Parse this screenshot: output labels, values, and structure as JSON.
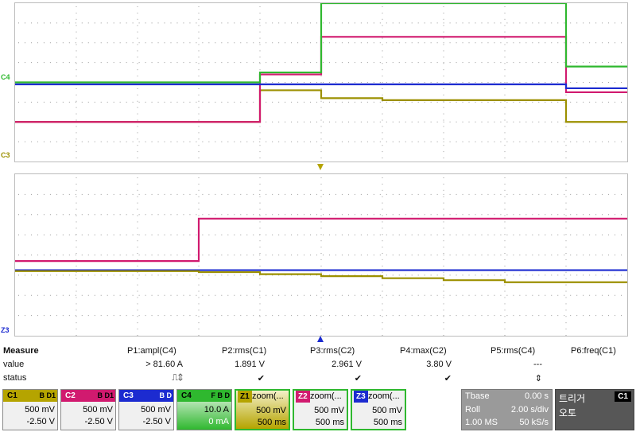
{
  "channels_gutter": {
    "c4": "C4",
    "c3": "C3",
    "z3": "Z3"
  },
  "measure": {
    "title": "Measure",
    "row_value_label": "value",
    "row_status_label": "status",
    "params": [
      {
        "name": "P1:ampl(C4)",
        "value": "> 81.60 A",
        "status": "⎍⇕"
      },
      {
        "name": "P2:rms(C1)",
        "value": "1.891 V",
        "status": "✔"
      },
      {
        "name": "P3:rms(C2)",
        "value": "2.961 V",
        "status": "✔"
      },
      {
        "name": "P4:max(C2)",
        "value": "3.80 V",
        "status": "✔"
      },
      {
        "name": "P5:rms(C4)",
        "value": "---",
        "status": "⇕"
      },
      {
        "name": "P6:freq(C1)",
        "value": "",
        "status": ""
      }
    ]
  },
  "channel_boxes": [
    {
      "tag": "C1",
      "badges": "B D1",
      "scale": "500 mV",
      "offset": "-2.50 V",
      "color": "#b5a400"
    },
    {
      "tag": "C2",
      "badges": "B D1",
      "scale": "500 mV",
      "offset": "-2.50 V",
      "color": "#d11a6f"
    },
    {
      "tag": "C3",
      "badges": "B D",
      "scale": "500 mV",
      "offset": "-2.50 V",
      "color": "#1c2bd0"
    },
    {
      "tag": "C4",
      "badges": "F B D",
      "scale": "10.0 A",
      "offset": "0 mA",
      "color": "#2fb82f"
    }
  ],
  "zoom_boxes": [
    {
      "tag": "Z1",
      "title": "zoom(...",
      "scale": "500 mV",
      "time": "500 ms",
      "color": "#b5a400"
    },
    {
      "tag": "Z2",
      "title": "zoom(...",
      "scale": "500 mV",
      "time": "500 ms",
      "color": "#d11a6f"
    },
    {
      "tag": "Z3",
      "title": "zoom(...",
      "scale": "500 mV",
      "time": "500 ms",
      "color": "#1c2bd0"
    }
  ],
  "timebase": {
    "label": "Tbase",
    "delay": "0.00 s",
    "mode": "Roll",
    "tdiv": "2.00 s/div",
    "mem": "1.00 MS",
    "rate": "50 kS/s"
  },
  "trigger": {
    "label": "트리거",
    "channel": "C1",
    "mode": "오토"
  },
  "colors": {
    "c1": "#9c9000",
    "c2": "#d11a6f",
    "c3": "#1c2bd0",
    "c4": "#2fb82f",
    "grid_dot": "#9a9a9a"
  },
  "chart_data": [
    {
      "type": "line",
      "x": [
        0,
        1,
        2,
        3,
        4,
        5,
        6,
        7,
        8,
        9,
        10
      ],
      "xlim": [
        0,
        10
      ],
      "ylim": [
        -4,
        4
      ],
      "grid": true,
      "series": [
        {
          "name": "C1",
          "values": [
            -2.0,
            -2.0,
            -2.0,
            -2.0,
            -0.4,
            -0.8,
            -0.9,
            -0.9,
            -0.9,
            -2.0,
            -2.0
          ]
        },
        {
          "name": "C2",
          "values": [
            -2.0,
            -2.0,
            -2.0,
            -2.0,
            0.4,
            2.3,
            2.3,
            2.3,
            2.3,
            -0.5,
            -0.5
          ]
        },
        {
          "name": "C3",
          "values": [
            -0.1,
            -0.1,
            -0.1,
            -0.1,
            -0.1,
            -0.1,
            -0.1,
            -0.1,
            -0.1,
            -0.3,
            -0.3
          ]
        },
        {
          "name": "C4",
          "values": [
            0,
            0,
            0,
            0,
            0.5,
            4,
            4,
            4,
            4,
            0.8,
            0.8
          ]
        }
      ]
    },
    {
      "type": "line",
      "x": [
        0,
        1,
        2,
        3,
        4,
        5,
        6,
        7,
        8,
        9,
        10
      ],
      "xlim": [
        0,
        10
      ],
      "ylim": [
        -4,
        4
      ],
      "grid": true,
      "series": [
        {
          "name": "Z2",
          "values": [
            -0.3,
            -0.3,
            -0.3,
            1.8,
            1.8,
            1.8,
            1.8,
            1.8,
            1.8,
            1.8,
            1.8
          ]
        },
        {
          "name": "Z3",
          "values": [
            -0.75,
            -0.75,
            -0.75,
            -0.75,
            -0.75,
            -0.75,
            -0.75,
            -0.75,
            -0.75,
            -0.75,
            -0.75
          ]
        },
        {
          "name": "Z1",
          "values": [
            -0.8,
            -0.8,
            -0.8,
            -0.85,
            -0.95,
            -1.05,
            -1.15,
            -1.25,
            -1.35,
            -1.35,
            -1.35
          ]
        }
      ]
    }
  ]
}
